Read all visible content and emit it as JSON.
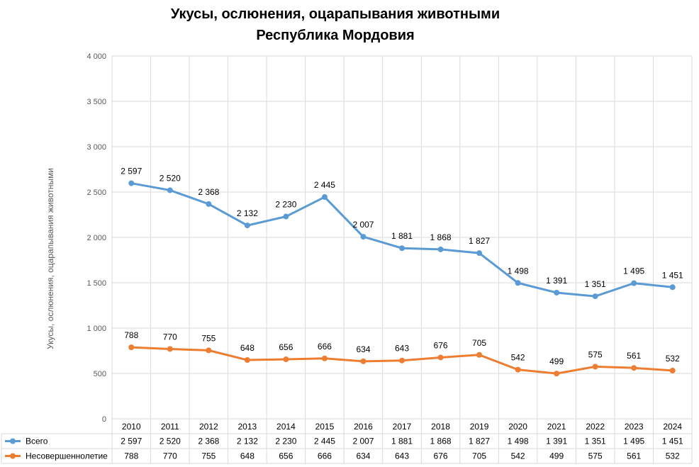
{
  "chart_data": {
    "type": "line",
    "title": [
      "Укусы, ослюнения, оцарапывания животными",
      "Республика Мордовия"
    ],
    "ylabel": "Укусы, ослюнения, оцарапывания животными",
    "xlabel": "",
    "ylim": [
      0,
      4000
    ],
    "yticks": [
      0,
      500,
      1000,
      1500,
      2000,
      2500,
      3000,
      3500,
      4000
    ],
    "ytick_labels": [
      "0",
      "500",
      "1 000",
      "1 500",
      "2 000",
      "2 500",
      "3 000",
      "3 500",
      "4 000"
    ],
    "grid": "vertical",
    "legend": "data-table",
    "categories": [
      "2010",
      "2011",
      "2012",
      "2013",
      "2014",
      "2015",
      "2016",
      "2017",
      "2018",
      "2019",
      "2020",
      "2021",
      "2022",
      "2023",
      "2024"
    ],
    "series": [
      {
        "name": "Всего",
        "color": "#5b9bd5",
        "values": [
          2597,
          2520,
          2368,
          2132,
          2230,
          2445,
          2007,
          1881,
          1868,
          1827,
          1498,
          1391,
          1351,
          1495,
          1451
        ],
        "labels": [
          "2 597",
          "2 520",
          "2 368",
          "2 132",
          "2 230",
          "2 445",
          "2 007",
          "1 881",
          "1 868",
          "1 827",
          "1 498",
          "1 391",
          "1 351",
          "1 495",
          "1 451"
        ]
      },
      {
        "name": "Несовершеннолетие",
        "color": "#ed7d31",
        "values": [
          788,
          770,
          755,
          648,
          656,
          666,
          634,
          643,
          676,
          705,
          542,
          499,
          575,
          561,
          532
        ],
        "labels": [
          "788",
          "770",
          "755",
          "648",
          "656",
          "666",
          "634",
          "643",
          "676",
          "705",
          "542",
          "499",
          "575",
          "561",
          "532"
        ]
      }
    ]
  }
}
